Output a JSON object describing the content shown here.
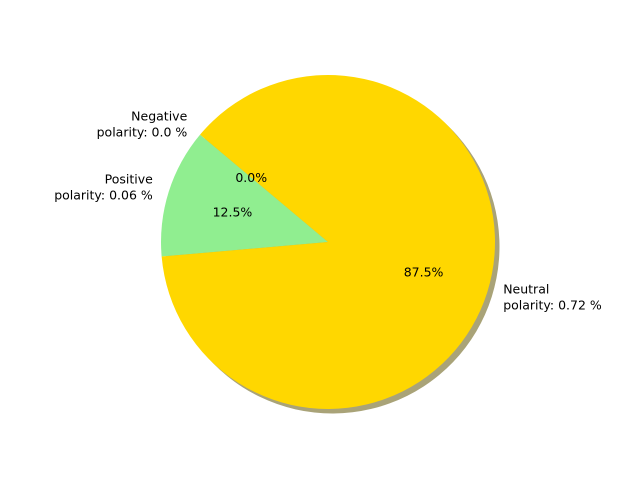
{
  "chart_data": {
    "type": "pie",
    "title": "",
    "shadow": true,
    "start_angle_deg": 140,
    "direction": "counterclockwise",
    "slices": [
      {
        "label_lines": [
          "Negative",
          "polarity: 0.0 %"
        ],
        "pct_label": "0.0%",
        "value": 0.0,
        "color": "#ff0000"
      },
      {
        "label_lines": [
          "Positive",
          "polarity: 0.06 %"
        ],
        "pct_label": "12.5%",
        "value": 12.5,
        "color": "#90ee90"
      },
      {
        "label_lines": [
          "Neutral",
          "polarity: 0.72 %"
        ],
        "pct_label": "87.5%",
        "value": 87.5,
        "color": "#ffd700"
      }
    ]
  }
}
